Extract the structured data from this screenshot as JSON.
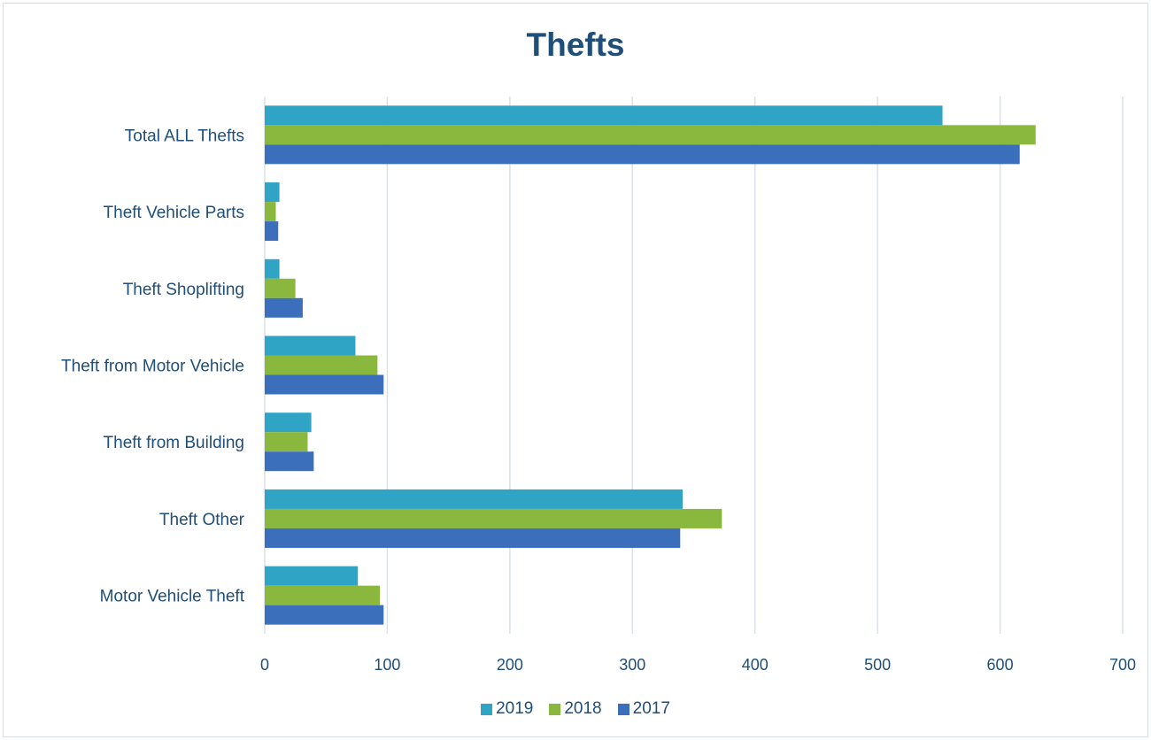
{
  "chart_data": {
    "type": "bar",
    "orientation": "horizontal",
    "title": "Thefts",
    "categories": [
      "Motor Vehicle Theft",
      "Theft  Other",
      "Theft from Building",
      "Theft from Motor Vehicle",
      "Theft Shoplifting",
      "Theft Vehicle Parts",
      "Total ALL Thefts"
    ],
    "series": [
      {
        "name": "2019",
        "color": "#2fa4c4",
        "values": [
          76,
          341,
          38,
          74,
          12,
          12,
          553
        ]
      },
      {
        "name": "2018",
        "color": "#8ab83f",
        "values": [
          94,
          373,
          35,
          92,
          25,
          9,
          629
        ]
      },
      {
        "name": "2017",
        "color": "#3b6fbb",
        "values": [
          97,
          339,
          40,
          97,
          31,
          11,
          616
        ]
      }
    ],
    "xlim": [
      0,
      700
    ],
    "xticks": [
      0,
      100,
      200,
      300,
      400,
      500,
      600,
      700
    ],
    "xlabel": "",
    "ylabel": "",
    "grid": "vertical",
    "legend_position": "bottom"
  }
}
